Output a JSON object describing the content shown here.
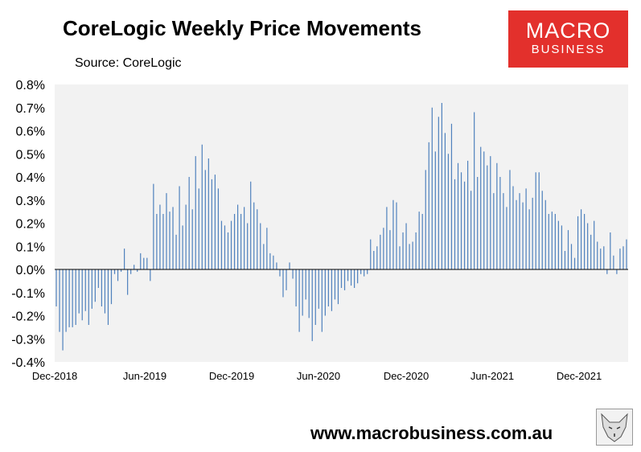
{
  "header": {
    "title": "CoreLogic Weekly Price Movements",
    "subtitle": "Source: CoreLogic"
  },
  "logo": {
    "line1": "MACRO",
    "line2": "BUSINESS",
    "color": "#e3302c"
  },
  "footer": {
    "url": "www.macrobusiness.com.au"
  },
  "chart_data": {
    "type": "bar",
    "title": "CoreLogic Weekly Price Movements",
    "xlabel": "",
    "ylabel": "",
    "ylim": [
      -0.004,
      0.008
    ],
    "yticks": [
      "0.8%",
      "0.7%",
      "0.6%",
      "0.5%",
      "0.4%",
      "0.3%",
      "0.2%",
      "0.1%",
      "0.0%",
      "-0.1%",
      "-0.2%",
      "-0.3%",
      "-0.4%"
    ],
    "xticks": [
      "Dec-2018",
      "Jun-2019",
      "Dec-2019",
      "Jun-2020",
      "Dec-2020",
      "Jun-2021",
      "Dec-2021"
    ],
    "bar_color": "#4f81bd",
    "grid": false,
    "values": [
      -0.0016,
      -0.0027,
      -0.0035,
      -0.0027,
      -0.0025,
      -0.0025,
      -0.0024,
      -0.0019,
      -0.0022,
      -0.0018,
      -0.0024,
      -0.0017,
      -0.0014,
      -0.0008,
      -0.0016,
      -0.0019,
      -0.0024,
      -0.0015,
      -0.0002,
      -0.0005,
      -0.0001,
      0.0009,
      -0.0011,
      -0.0002,
      0.0002,
      -0.0001,
      0.0007,
      0.0005,
      0.0005,
      -0.0005,
      0.0037,
      0.0024,
      0.0028,
      0.0024,
      0.0033,
      0.0025,
      0.0027,
      0.0015,
      0.0036,
      0.0019,
      0.0028,
      0.004,
      0.0026,
      0.0049,
      0.0035,
      0.0054,
      0.0043,
      0.0048,
      0.0039,
      0.0041,
      0.0035,
      0.0021,
      0.0019,
      0.0016,
      0.0021,
      0.0024,
      0.0028,
      0.0024,
      0.0027,
      0.002,
      0.0038,
      0.0029,
      0.0026,
      0.002,
      0.0011,
      0.0018,
      0.0007,
      0.0006,
      0.0003,
      -0.0003,
      -0.0012,
      -0.0009,
      0.0003,
      -0.0004,
      -0.0016,
      -0.0027,
      -0.002,
      -0.0013,
      -0.0021,
      -0.0031,
      -0.0024,
      -0.0017,
      -0.0027,
      -0.002,
      -0.0016,
      -0.0018,
      -0.0013,
      -0.0015,
      -0.0008,
      -0.0009,
      -0.0005,
      -0.0007,
      -0.0008,
      -0.0006,
      -0.0002,
      -0.0003,
      -0.0002,
      0.0013,
      0.0008,
      0.001,
      0.0015,
      0.0018,
      0.0027,
      0.0017,
      0.003,
      0.0029,
      0.001,
      0.0016,
      0.002,
      0.0011,
      0.0012,
      0.0016,
      0.0025,
      0.0024,
      0.0043,
      0.0055,
      0.007,
      0.0051,
      0.0066,
      0.0072,
      0.0059,
      0.005,
      0.0063,
      0.0039,
      0.0046,
      0.0042,
      0.0038,
      0.0047,
      0.0034,
      0.0068,
      0.004,
      0.0053,
      0.0051,
      0.0045,
      0.0049,
      0.0033,
      0.0046,
      0.004,
      0.0033,
      0.0027,
      0.0043,
      0.0036,
      0.003,
      0.0033,
      0.0029,
      0.0035,
      0.0026,
      0.0031,
      0.0042,
      0.0042,
      0.0034,
      0.003,
      0.0024,
      0.0025,
      0.0024,
      0.0021,
      0.0019,
      0.0008,
      0.0017,
      0.0011,
      0.0005,
      0.0023,
      0.0026,
      0.0024,
      0.002,
      0.0015,
      0.0021,
      0.0012,
      0.0009,
      0.001,
      -0.0002,
      0.0016,
      0.0006,
      -0.0002,
      0.0009,
      0.001,
      0.0013
    ]
  }
}
